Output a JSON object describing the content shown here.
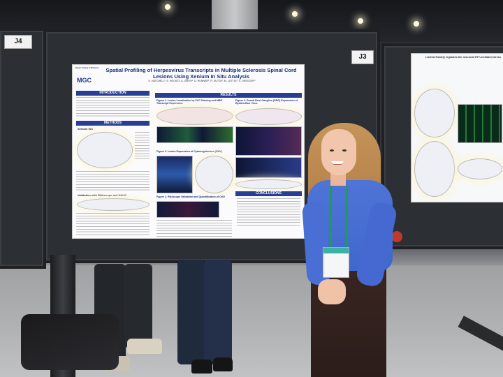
{
  "scene": {
    "description_labels": {
      "booth_left": "J4",
      "booth_mid": "J3"
    }
  },
  "poster": {
    "logo_small": "Baylor College of Medicine",
    "logo_big": "MGC",
    "title": "Spatial Profiling of Herpesvirus Transcripts in Multiple Sclerosis Spinal Cord Lesions Using Xenium In Situ Analysis",
    "authors": "S. HATCHELL¹, E. HOCKET, A. SMITH², D. HUNNER², R. DUTTA³, M. LUTTIG³, S. GREGORY¹",
    "sections": {
      "introduction": "INTRODUCTION",
      "methods": "METHODS",
      "results": "RESULTS",
      "conclusions": "CONCLUSIONS"
    },
    "sub_heads": {
      "xenium": "Xenium ISS",
      "validation": "Validation with RNAscope and HALO"
    },
    "figures": {
      "fig1": "Figure 1. Lesion Localization by PLP Staining and MBP Transcript Expression",
      "fig2": "Figure 2. Lesion Expression of Cytomegalovirus (CMV)",
      "fig3": "Figure 3. RNAscope Validation and Quantification of CMV",
      "fig4": "Figure 4. Dorsal Root Ganglion (DRG) Expression of Epstein-Barr Virus"
    }
  },
  "right_poster": {
    "title": "Listeria Hsat1Q regulates the neuronal HTT-mediated stress"
  }
}
